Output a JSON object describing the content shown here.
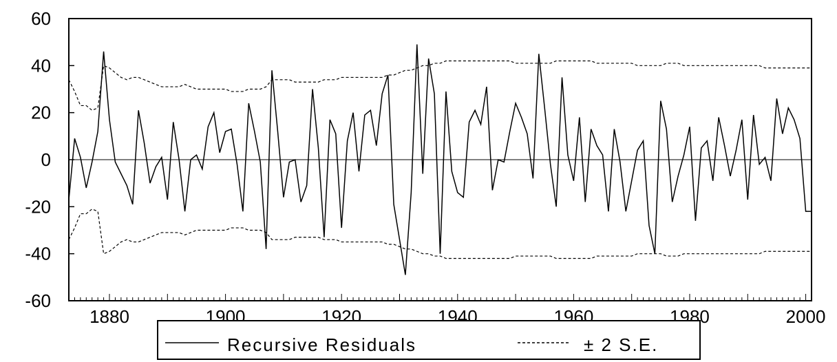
{
  "chart_data": {
    "type": "line",
    "title": "",
    "xlabel": "",
    "ylabel": "",
    "xlim": [
      1873,
      2001
    ],
    "ylim": [
      -60,
      60
    ],
    "x_ticks": [
      1880,
      1900,
      1920,
      1940,
      1960,
      1980,
      2000
    ],
    "y_ticks": [
      60,
      40,
      20,
      0,
      -20,
      -40,
      -60
    ],
    "x_tick_labels": [
      "1880",
      "1900",
      "1920",
      "1940",
      "1960",
      "1980",
      "2000"
    ],
    "y_tick_labels": [
      "60",
      "40",
      "20",
      "0",
      "-20",
      "-40",
      "-60"
    ],
    "zero_line": true,
    "grid": false,
    "legend_position": "bottom-center",
    "x": [
      1873,
      1874,
      1875,
      1876,
      1877,
      1878,
      1879,
      1880,
      1881,
      1882,
      1883,
      1884,
      1885,
      1886,
      1887,
      1888,
      1889,
      1890,
      1891,
      1892,
      1893,
      1894,
      1895,
      1896,
      1897,
      1898,
      1899,
      1900,
      1901,
      1902,
      1903,
      1904,
      1905,
      1906,
      1907,
      1908,
      1909,
      1910,
      1911,
      1912,
      1913,
      1914,
      1915,
      1916,
      1917,
      1918,
      1919,
      1920,
      1921,
      1922,
      1923,
      1924,
      1925,
      1926,
      1927,
      1928,
      1929,
      1930,
      1931,
      1932,
      1933,
      1934,
      1935,
      1936,
      1937,
      1938,
      1939,
      1940,
      1941,
      1942,
      1943,
      1944,
      1945,
      1946,
      1947,
      1948,
      1949,
      1950,
      1951,
      1952,
      1953,
      1954,
      1955,
      1956,
      1957,
      1958,
      1959,
      1960,
      1961,
      1962,
      1963,
      1964,
      1965,
      1966,
      1967,
      1968,
      1969,
      1970,
      1971,
      1972,
      1973,
      1974,
      1975,
      1976,
      1977,
      1978,
      1979,
      1980,
      1981,
      1982,
      1983,
      1984,
      1985,
      1986,
      1987,
      1988,
      1989,
      1990,
      1991,
      1992,
      1993,
      1994,
      1995,
      1996,
      1997,
      1998,
      1999,
      2000,
      2001
    ],
    "series": [
      {
        "name": "Recursive Residuals",
        "style": "solid",
        "color": "#000000",
        "values": [
          -17,
          9,
          1,
          -12,
          -1,
          12,
          46,
          17,
          -1,
          -6,
          -11,
          -19,
          21,
          7,
          -10,
          -3,
          1,
          -17,
          16,
          0,
          -22,
          0,
          2,
          -4,
          14,
          20,
          3,
          12,
          13,
          -2,
          -22,
          24,
          12,
          -1,
          -38,
          38,
          12,
          -16,
          -1,
          0,
          -18,
          -11,
          30,
          5,
          -33,
          17,
          11,
          -29,
          8,
          20,
          -5,
          19,
          21,
          6,
          28,
          36,
          -19,
          -34,
          -49,
          -14,
          49,
          -6,
          43,
          28,
          -40,
          29,
          -5,
          -14,
          -16,
          16,
          21,
          15,
          31,
          -13,
          0,
          -1,
          12,
          24,
          18,
          11,
          -8,
          45,
          22,
          -2,
          -20,
          35,
          2,
          -9,
          18,
          -18,
          13,
          6,
          2,
          -22,
          13,
          -1,
          -22,
          -9,
          4,
          8,
          -28,
          -40,
          25,
          13,
          -18,
          -7,
          2,
          14,
          -26,
          5,
          8,
          -9,
          18,
          6,
          -7,
          4,
          17,
          -17,
          19,
          -2,
          1,
          -9,
          26,
          11,
          22,
          17,
          9,
          -22,
          -22
        ]
      },
      {
        "name": "± 2 S.E.",
        "style": "dashed",
        "color": "#000000",
        "upper": [
          34,
          29,
          23,
          23,
          21,
          22,
          40,
          39,
          37,
          35,
          34,
          35,
          35,
          34,
          33,
          32,
          31,
          31,
          31,
          31,
          32,
          31,
          30,
          30,
          30,
          30,
          30,
          30,
          29,
          29,
          29,
          30,
          30,
          30,
          31,
          34,
          34,
          34,
          34,
          33,
          33,
          33,
          33,
          33,
          34,
          34,
          34,
          35,
          35,
          35,
          35,
          35,
          35,
          35,
          35,
          36,
          36,
          37,
          38,
          38,
          39,
          40,
          40,
          41,
          41,
          42,
          42,
          42,
          42,
          42,
          42,
          42,
          42,
          42,
          42,
          42,
          42,
          41,
          41,
          41,
          41,
          41,
          41,
          41,
          42,
          42,
          42,
          42,
          42,
          42,
          42,
          41,
          41,
          41,
          41,
          41,
          41,
          41,
          40,
          40,
          40,
          40,
          40,
          41,
          41,
          41,
          40,
          40,
          40,
          40,
          40,
          40,
          40,
          40,
          40,
          40,
          40,
          40,
          40,
          40,
          39,
          39,
          39,
          39,
          39,
          39,
          39,
          39,
          39
        ],
        "lower": [
          -34,
          -29,
          -23,
          -23,
          -21,
          -22,
          -40,
          -39,
          -37,
          -35,
          -34,
          -35,
          -35,
          -34,
          -33,
          -32,
          -31,
          -31,
          -31,
          -31,
          -32,
          -31,
          -30,
          -30,
          -30,
          -30,
          -30,
          -30,
          -29,
          -29,
          -29,
          -30,
          -30,
          -30,
          -31,
          -34,
          -34,
          -34,
          -34,
          -33,
          -33,
          -33,
          -33,
          -33,
          -34,
          -34,
          -34,
          -35,
          -35,
          -35,
          -35,
          -35,
          -35,
          -35,
          -35,
          -36,
          -36,
          -37,
          -38,
          -38,
          -39,
          -40,
          -40,
          -41,
          -41,
          -42,
          -42,
          -42,
          -42,
          -42,
          -42,
          -42,
          -42,
          -42,
          -42,
          -42,
          -42,
          -41,
          -41,
          -41,
          -41,
          -41,
          -41,
          -41,
          -42,
          -42,
          -42,
          -42,
          -42,
          -42,
          -42,
          -41,
          -41,
          -41,
          -41,
          -41,
          -41,
          -41,
          -40,
          -40,
          -40,
          -40,
          -40,
          -41,
          -41,
          -41,
          -40,
          -40,
          -40,
          -40,
          -40,
          -40,
          -40,
          -40,
          -40,
          -40,
          -40,
          -40,
          -40,
          -40,
          -39,
          -39,
          -39,
          -39,
          -39,
          -39,
          -39,
          -39,
          -39
        ]
      }
    ],
    "legend": {
      "items": [
        {
          "label": "Recursive Residuals",
          "style": "solid"
        },
        {
          "label": "± 2 S.E.",
          "style": "dashed"
        }
      ]
    }
  }
}
